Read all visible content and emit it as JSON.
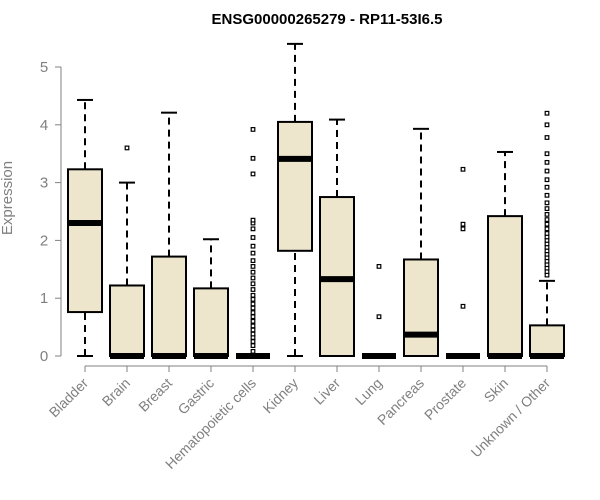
{
  "chart_data": {
    "type": "boxplot",
    "title": "ENSG00000265279 - RP11-53I6.5",
    "xlabel": "",
    "ylabel": "Expression",
    "ylim": [
      0,
      5.5
    ],
    "yticks": [
      0,
      1,
      2,
      3,
      4,
      5
    ],
    "grid": false,
    "box_fill": "#ede6cc",
    "categories": [
      "Bladder",
      "Brain",
      "Breast",
      "Gastric",
      "Hematopoietic cells",
      "Kidney",
      "Liver",
      "Lung",
      "Pancreas",
      "Prostate",
      "Skin",
      "Unknown / Other"
    ],
    "boxes": [
      {
        "whisker_low": 0,
        "q1": 0.76,
        "median": 2.3,
        "q3": 3.23,
        "whisker_high": 4.43,
        "outliers": []
      },
      {
        "whisker_low": 0,
        "q1": 0,
        "median": 0,
        "q3": 1.22,
        "whisker_high": 3.0,
        "outliers": [
          3.6
        ]
      },
      {
        "whisker_low": 0,
        "q1": 0,
        "median": 0,
        "q3": 1.72,
        "whisker_high": 4.21,
        "outliers": []
      },
      {
        "whisker_low": 0,
        "q1": 0,
        "median": 0,
        "q3": 1.17,
        "whisker_high": 2.02,
        "outliers": []
      },
      {
        "whisker_low": 0,
        "q1": 0,
        "median": 0,
        "q3": 0,
        "whisker_high": 0,
        "outliers": [
          0.08,
          0.18,
          0.25,
          0.32,
          0.38,
          0.45,
          0.52,
          0.6,
          0.68,
          0.75,
          0.83,
          0.9,
          0.98,
          1.05,
          1.15,
          1.25,
          1.35,
          1.45,
          1.55,
          1.65,
          1.78,
          1.9,
          2.05,
          2.2,
          2.3,
          2.35,
          3.15,
          3.42,
          3.92
        ]
      },
      {
        "whisker_low": 0,
        "q1": 1.82,
        "median": 3.41,
        "q3": 4.05,
        "whisker_high": 5.4,
        "outliers": []
      },
      {
        "whisker_low": 0,
        "q1": 0,
        "median": 1.33,
        "q3": 2.75,
        "whisker_high": 4.09,
        "outliers": []
      },
      {
        "whisker_low": 0,
        "q1": 0,
        "median": 0,
        "q3": 0,
        "whisker_high": 0,
        "outliers": [
          0.68,
          1.55
        ]
      },
      {
        "whisker_low": 0,
        "q1": 0,
        "median": 0.37,
        "q3": 1.67,
        "whisker_high": 3.93,
        "outliers": []
      },
      {
        "whisker_low": 0,
        "q1": 0,
        "median": 0,
        "q3": 0,
        "whisker_high": 0,
        "outliers": [
          0.86,
          2.2,
          2.28,
          3.23
        ]
      },
      {
        "whisker_low": 0,
        "q1": 0,
        "median": 0,
        "q3": 2.42,
        "whisker_high": 3.53,
        "outliers": []
      },
      {
        "whisker_low": 0,
        "q1": 0,
        "median": 0,
        "q3": 0.53,
        "whisker_high": 1.3,
        "outliers": [
          1.4,
          1.46,
          1.52,
          1.58,
          1.64,
          1.7,
          1.76,
          1.82,
          1.88,
          1.94,
          2.0,
          2.06,
          2.12,
          2.2,
          2.28,
          2.36,
          2.45,
          2.55,
          2.65,
          2.78,
          2.92,
          3.05,
          3.2,
          3.35,
          3.5,
          3.78,
          4.0,
          4.2
        ]
      }
    ]
  }
}
